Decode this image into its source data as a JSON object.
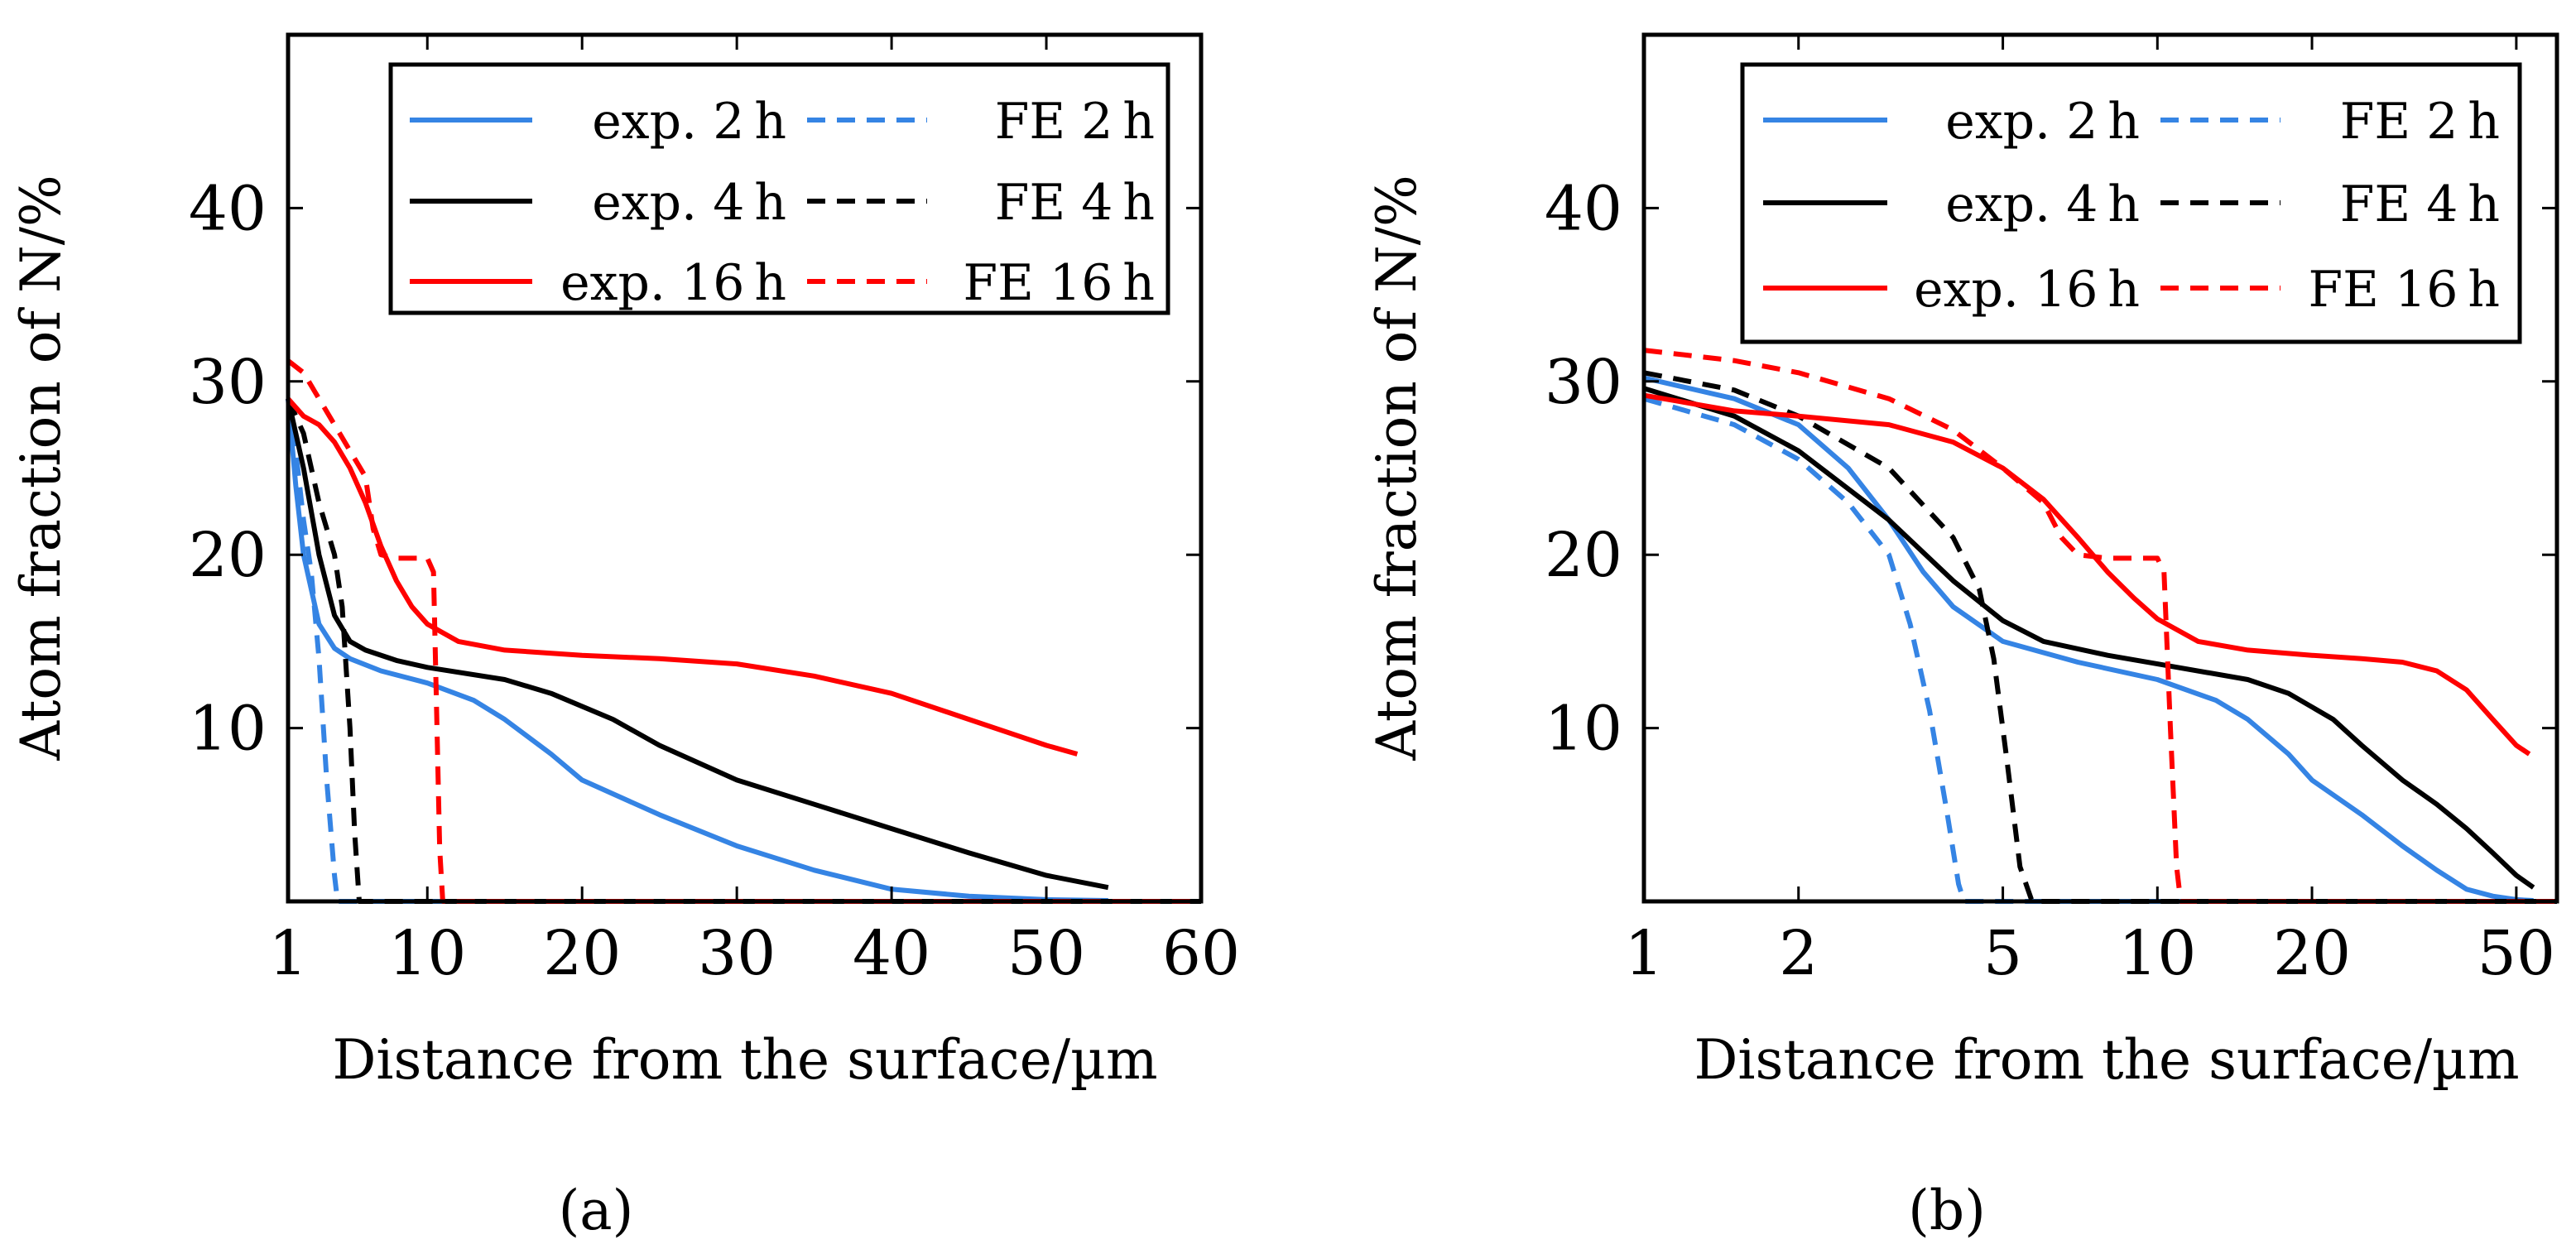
{
  "colors": {
    "blue": "#3584e4",
    "black": "#000000",
    "red": "#ff0000"
  },
  "chart_data": [
    {
      "type": "line",
      "panel_label": "(a)",
      "xscale": "linear",
      "xlabel": "Distance from the surface/µm",
      "ylabel": "Atom fraction of N/%",
      "xlim": [
        1,
        60
      ],
      "ylim": [
        0,
        50
      ],
      "xticks": [
        1,
        10,
        20,
        30,
        40,
        50,
        60
      ],
      "xtick_labels": [
        "1",
        "10",
        "20",
        "30",
        "40",
        "50",
        "60"
      ],
      "yticks": [
        10,
        20,
        30,
        40
      ],
      "ytick_labels": [
        "10",
        "20",
        "30",
        "40"
      ],
      "legend_position": "top-right",
      "series": [
        {
          "name": "exp. 2 h",
          "color": "blue",
          "dash": "solid",
          "x": [
            1,
            1.5,
            2,
            3,
            4,
            5,
            7,
            10,
            13,
            15,
            18,
            20,
            25,
            30,
            35,
            40,
            45,
            50,
            54
          ],
          "y": [
            29,
            24,
            20,
            16,
            14.6,
            14,
            13.3,
            12.6,
            11.6,
            10.5,
            8.5,
            7,
            5,
            3.2,
            1.8,
            0.7,
            0.3,
            0.1,
            0.05
          ]
        },
        {
          "name": "FE 2 h",
          "color": "blue",
          "dash": "dashed",
          "x": [
            1,
            1.5,
            2,
            2.5,
            3,
            3.5,
            4,
            4.2,
            60
          ],
          "y": [
            29,
            26,
            22,
            19,
            14,
            7,
            1.5,
            0,
            0
          ]
        },
        {
          "name": "exp. 4 h",
          "color": "black",
          "dash": "solid",
          "x": [
            1,
            2,
            3,
            4,
            5,
            6,
            8,
            10,
            15,
            18,
            22,
            25,
            30,
            35,
            40,
            45,
            50,
            54
          ],
          "y": [
            29,
            25,
            20,
            16.5,
            15,
            14.5,
            13.9,
            13.5,
            12.8,
            12,
            10.5,
            9,
            7,
            5.6,
            4.2,
            2.8,
            1.5,
            0.8
          ]
        },
        {
          "name": "FE 4 h",
          "color": "black",
          "dash": "dashed",
          "x": [
            1,
            2,
            3,
            4,
            4.5,
            5,
            5.3,
            5.6,
            60
          ],
          "y": [
            29,
            27,
            23,
            20,
            17,
            10,
            4,
            0,
            0
          ]
        },
        {
          "name": "exp. 16 h",
          "color": "red",
          "dash": "solid",
          "x": [
            1,
            2,
            3,
            4,
            5,
            6,
            7,
            8,
            9,
            10,
            12,
            15,
            20,
            25,
            30,
            35,
            40,
            45,
            50,
            52
          ],
          "y": [
            29,
            28,
            27.5,
            26.5,
            25,
            23,
            20.5,
            18.5,
            17,
            16,
            15,
            14.5,
            14.2,
            14,
            13.7,
            13,
            12,
            10.5,
            9,
            8.5
          ]
        },
        {
          "name": "FE 16 h",
          "color": "red",
          "dash": "dashed",
          "x": [
            1,
            2,
            3,
            4,
            5,
            6,
            6.5,
            7,
            8,
            9,
            10,
            10.4,
            10.8,
            11,
            60
          ],
          "y": [
            31.2,
            30.5,
            29,
            27.5,
            26,
            24.5,
            21.5,
            20,
            19.8,
            19.8,
            19.8,
            19,
            3,
            0,
            0
          ]
        }
      ]
    },
    {
      "type": "line",
      "panel_label": "(b)",
      "xscale": "log",
      "xlabel": "Distance from the surface/µm",
      "ylabel": "Atom fraction of N/%",
      "xlim": [
        1,
        60
      ],
      "ylim": [
        0,
        50
      ],
      "xticks": [
        1,
        2,
        5,
        10,
        20,
        50
      ],
      "xtick_labels": [
        "1",
        "2",
        "5",
        "10",
        "20",
        "50"
      ],
      "yticks": [
        10,
        20,
        30,
        40
      ],
      "ytick_labels": [
        "10",
        "20",
        "30",
        "40"
      ],
      "legend_position": "top-right",
      "series": [
        {
          "name": "exp. 2 h",
          "color": "blue",
          "dash": "solid",
          "x": [
            1,
            1.5,
            2,
            2.5,
            3,
            3.5,
            4,
            5,
            7,
            10,
            13,
            15,
            18,
            20,
            25,
            30,
            35,
            40,
            45,
            50,
            54
          ],
          "y": [
            30.2,
            29,
            27.5,
            25,
            22,
            19,
            17,
            15,
            13.8,
            12.8,
            11.6,
            10.5,
            8.5,
            7,
            5,
            3.2,
            1.8,
            0.7,
            0.3,
            0.1,
            0.05
          ]
        },
        {
          "name": "FE 2 h",
          "color": "blue",
          "dash": "dashed",
          "x": [
            1,
            1.5,
            2,
            2.5,
            3,
            3.3,
            3.6,
            3.9,
            4.1,
            4.2,
            60
          ],
          "y": [
            29,
            27.5,
            25.5,
            23,
            20,
            16,
            11,
            5,
            1,
            0,
            0
          ]
        },
        {
          "name": "exp. 4 h",
          "color": "black",
          "dash": "solid",
          "x": [
            1,
            1.5,
            2,
            3,
            4,
            5,
            6,
            8,
            10,
            15,
            18,
            22,
            25,
            30,
            35,
            40,
            45,
            50,
            54
          ],
          "y": [
            29.6,
            28,
            26,
            22,
            18.5,
            16.2,
            15,
            14.2,
            13.7,
            12.8,
            12,
            10.5,
            9,
            7,
            5.6,
            4.2,
            2.8,
            1.5,
            0.8
          ]
        },
        {
          "name": "FE 4 h",
          "color": "black",
          "dash": "dashed",
          "x": [
            1,
            1.5,
            2,
            3,
            4,
            4.5,
            4.8,
            5.1,
            5.4,
            5.7,
            60
          ],
          "y": [
            30.5,
            29.5,
            28,
            25,
            21,
            18,
            14,
            8,
            2,
            0,
            0
          ]
        },
        {
          "name": "exp. 16 h",
          "color": "red",
          "dash": "solid",
          "x": [
            1,
            1.5,
            2,
            3,
            4,
            5,
            6,
            7,
            8,
            9,
            10,
            12,
            15,
            20,
            25,
            30,
            35,
            40,
            45,
            50,
            53
          ],
          "y": [
            29.2,
            28.3,
            28,
            27.5,
            26.5,
            25,
            23.2,
            21,
            19,
            17.5,
            16.3,
            15,
            14.5,
            14.2,
            14,
            13.8,
            13.3,
            12.2,
            10.5,
            9,
            8.5
          ]
        },
        {
          "name": "FE 16 h",
          "color": "red",
          "dash": "dashed",
          "x": [
            1,
            1.5,
            2,
            3,
            4,
            5,
            6,
            6.5,
            7,
            8,
            9,
            10,
            10.3,
            10.6,
            10.9,
            11.1,
            60
          ],
          "y": [
            31.8,
            31.2,
            30.5,
            29,
            27.2,
            25,
            23,
            21,
            20,
            19.8,
            19.8,
            19.8,
            19,
            10,
            2,
            0,
            0
          ]
        }
      ]
    }
  ]
}
